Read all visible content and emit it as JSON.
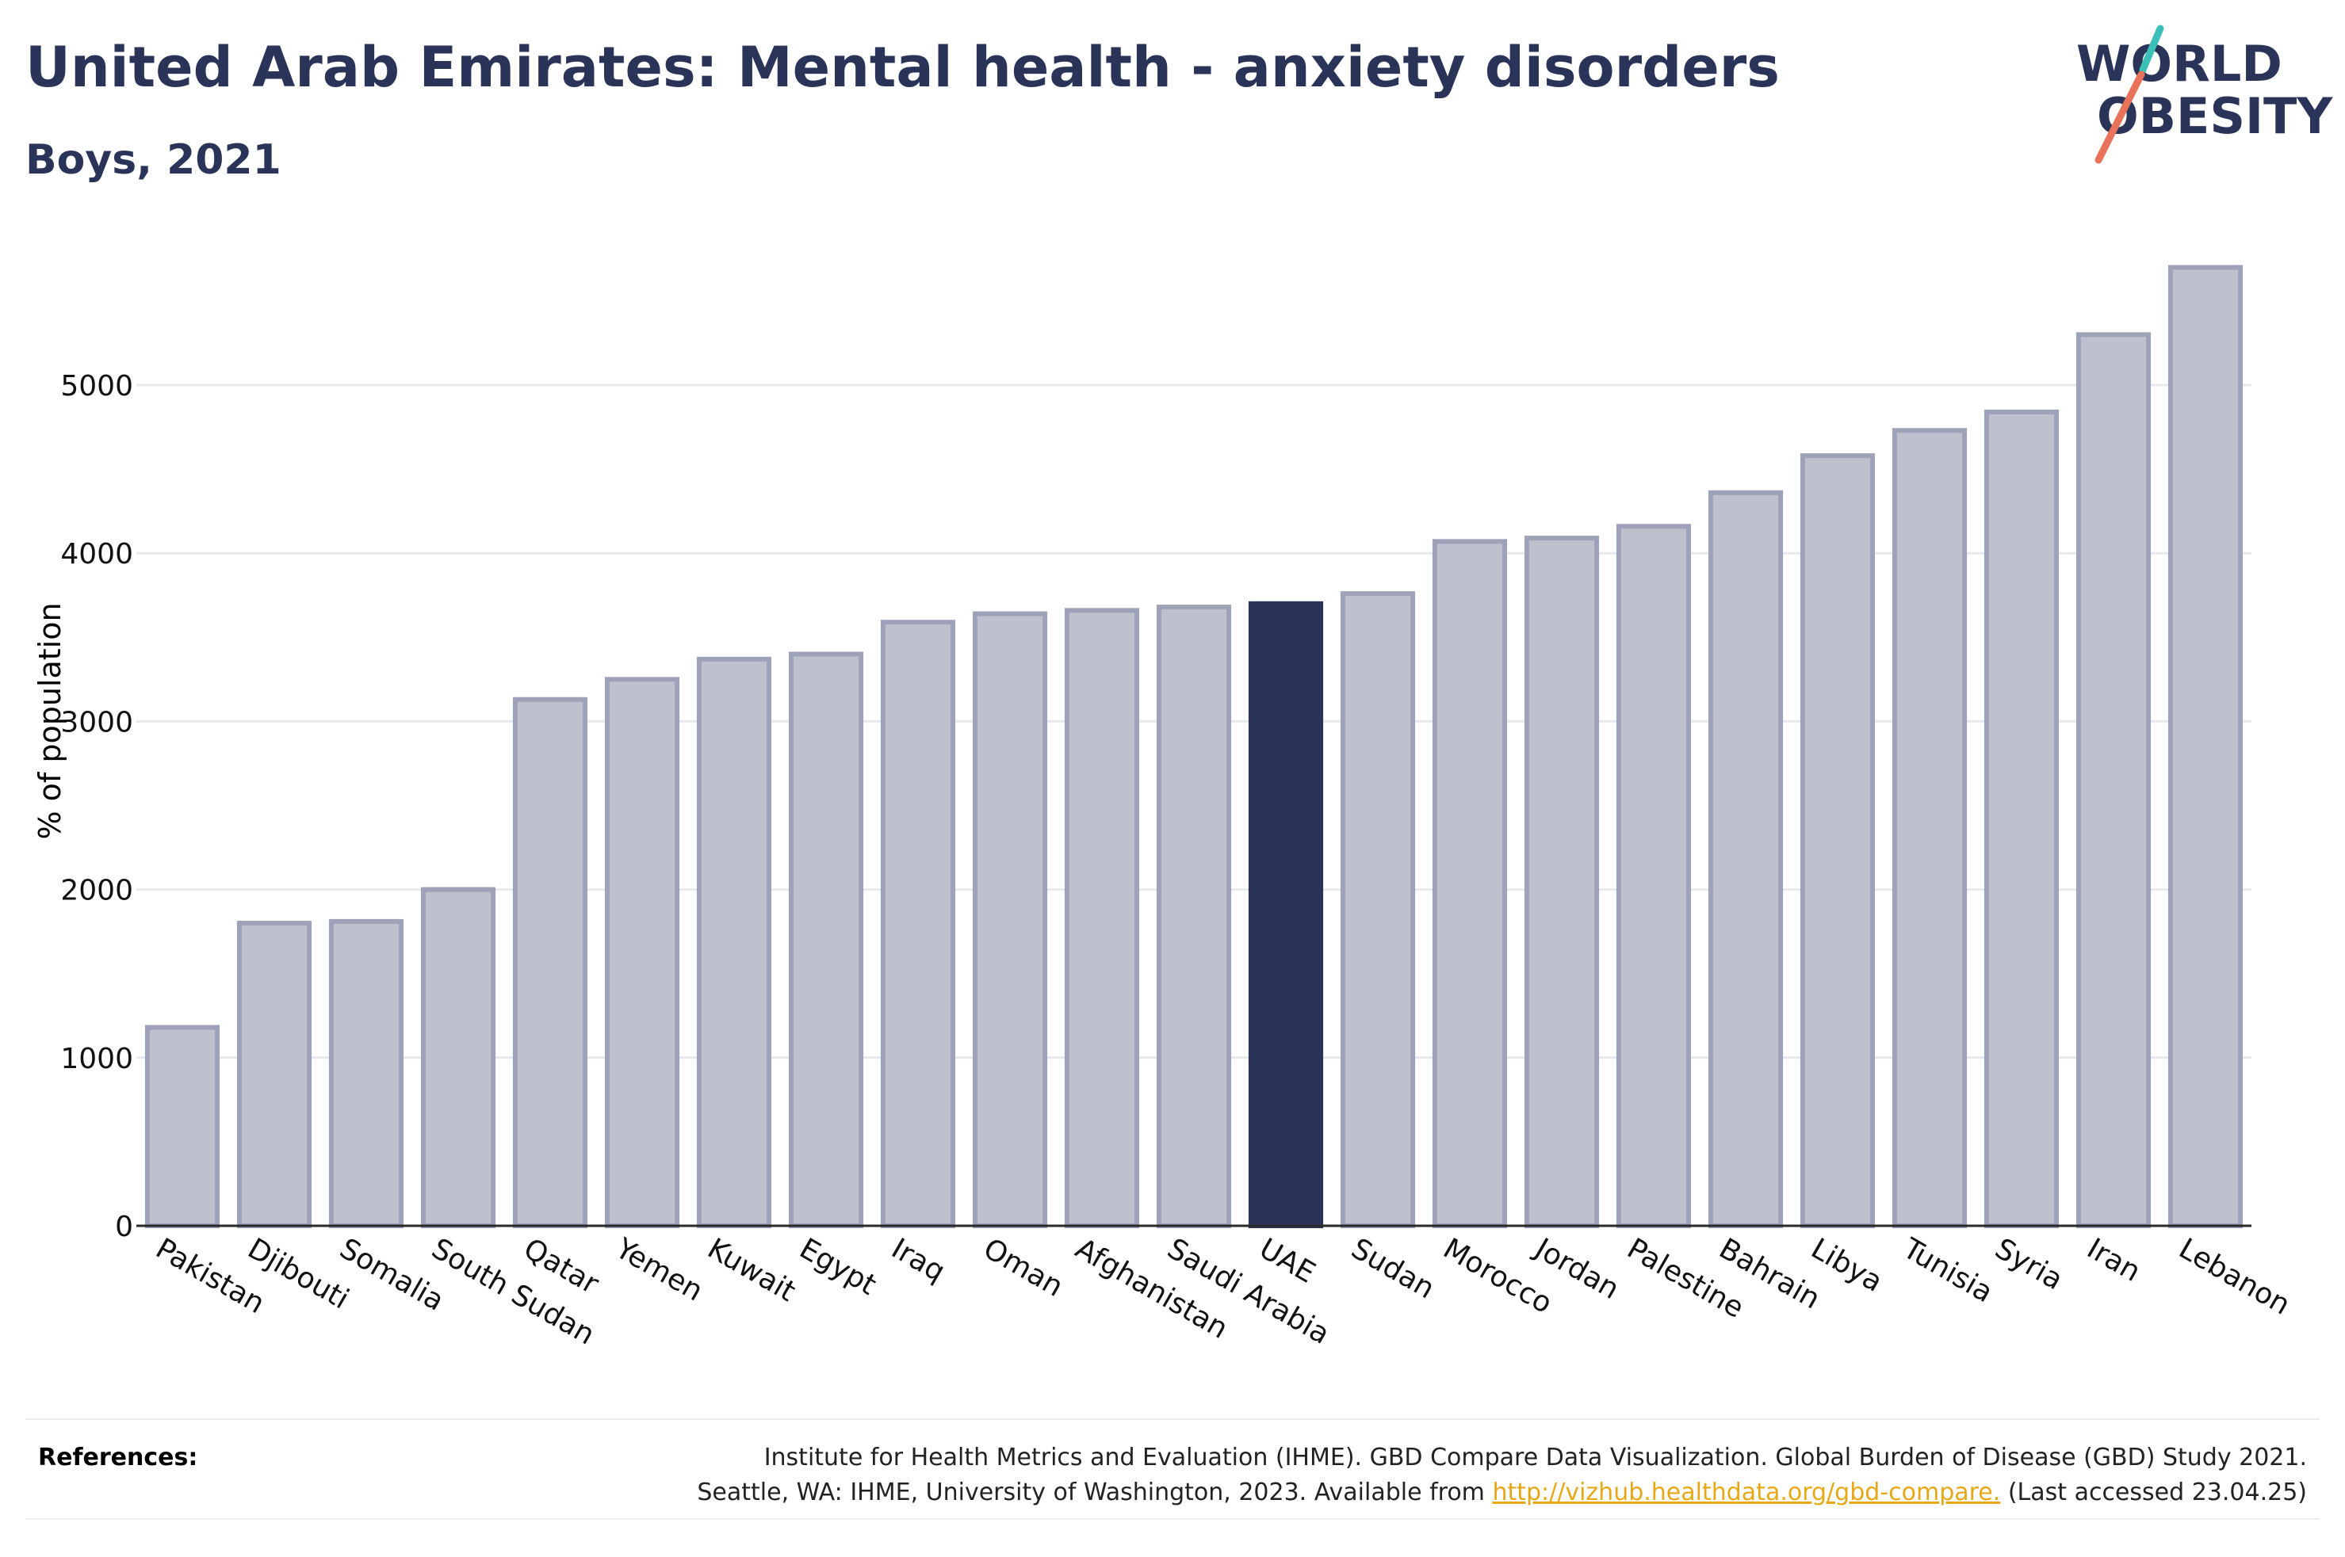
{
  "header": {
    "title": "United Arab Emirates: Mental health - anxiety disorders",
    "subtitle": "Boys, 2021"
  },
  "logo": {
    "line1": "WORLD",
    "line2": "OBESITY",
    "colors": {
      "text": "#2a3459",
      "slash_teal": "#3bbfb7",
      "slash_coral": "#e8735a"
    }
  },
  "chart_data": {
    "type": "bar",
    "categories": [
      "Pakistan",
      "Djibouti",
      "Somalia",
      "South Sudan",
      "Qatar",
      "Yemen",
      "Kuwait",
      "Egypt",
      "Iraq",
      "Oman",
      "Afghanistan",
      "Saudi Arabia",
      "UAE",
      "Sudan",
      "Morocco",
      "Jordan",
      "Palestine",
      "Bahrain",
      "Libya",
      "Tunisia",
      "Syria",
      "Iran",
      "Lebanon"
    ],
    "values": [
      1180,
      1800,
      1810,
      2000,
      3130,
      3250,
      3370,
      3400,
      3590,
      3640,
      3660,
      3680,
      3700,
      3760,
      4070,
      4090,
      4160,
      4360,
      4580,
      4730,
      4840,
      5300,
      5700
    ],
    "highlight": "UAE",
    "ylabel": "% of population",
    "ylim": [
      0,
      5700
    ],
    "yticks": [
      0,
      1000,
      2000,
      3000,
      4000,
      5000
    ],
    "grid": true,
    "colors": {
      "bar": "#bec1cd",
      "bar_border": "#9ea2b9",
      "highlight": "#2a3459"
    }
  },
  "references": {
    "label": "References:",
    "line1": "Institute for Health Metrics and Evaluation (IHME). GBD Compare Data Visualization. Global Burden of Disease (GBD) Study 2021.",
    "line2_prefix": "Seattle, WA: IHME, University of Washington, 2023. Available from ",
    "link": "http://vizhub.healthdata.org/gbd-compare.",
    "line2_suffix": " (Last accessed 23.04.25)"
  }
}
